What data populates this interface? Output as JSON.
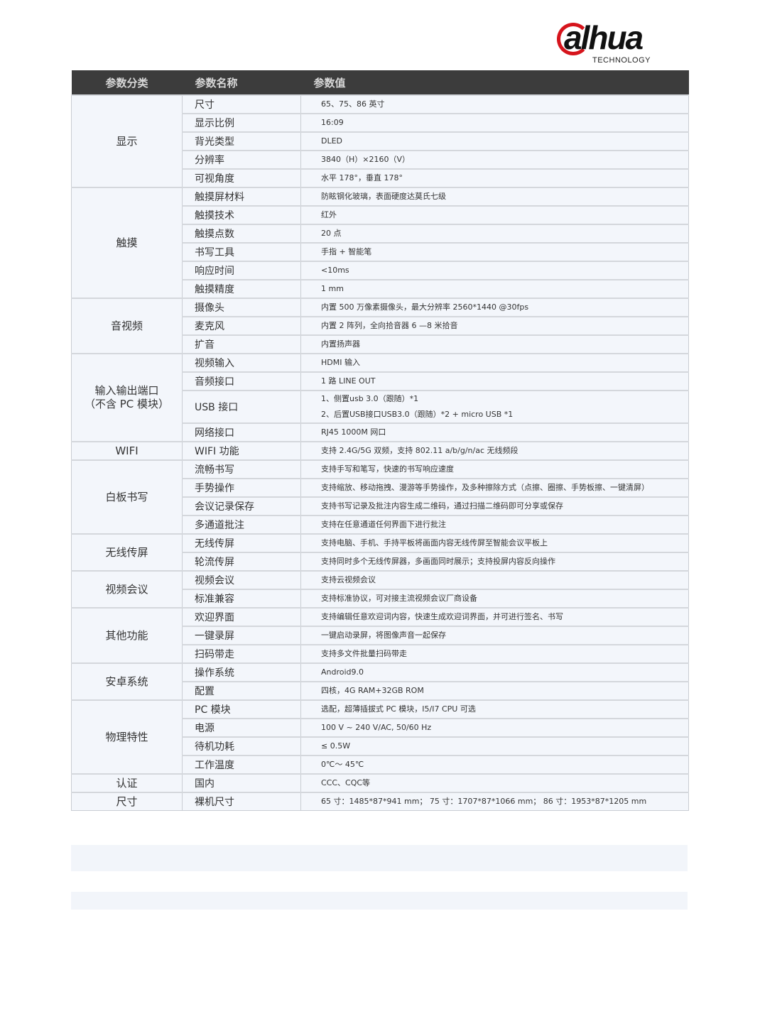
{
  "logo": {
    "text": "alhua",
    "subtitle": "TECHNOLOGY",
    "accent": "#d6141c"
  },
  "header": [
    "参数分类",
    "参数名称",
    "参数值"
  ],
  "groups": [
    {
      "category": [
        "显示"
      ],
      "rows": [
        [
          "尺寸",
          "65、75、86 英寸"
        ],
        [
          "显示比例",
          "16:09"
        ],
        [
          "背光类型",
          "DLED"
        ],
        [
          "分辨率",
          "3840（H）×2160（V）"
        ],
        [
          "可视角度",
          "水平 178°，垂直 178°"
        ]
      ]
    },
    {
      "category": [
        "触摸"
      ],
      "rows": [
        [
          "触摸屏材料",
          "防眩钢化玻璃，表面硬度达莫氏七级"
        ],
        [
          "触摸技术",
          "红外"
        ],
        [
          "触摸点数",
          "20 点"
        ],
        [
          "书写工具",
          "手指 + 智能笔"
        ],
        [
          "响应时间",
          "<10ms"
        ],
        [
          "触摸精度",
          "1 mm"
        ]
      ]
    },
    {
      "category": [
        "音视频"
      ],
      "rows": [
        [
          "摄像头",
          "内置 500 万像素摄像头，最大分辨率 2560*1440  @30fps"
        ],
        [
          "麦克风",
          "内置 2 阵列，全向拾音器 6 —8 米拾音"
        ],
        [
          "扩音",
          "内置扬声器"
        ]
      ]
    },
    {
      "category": [
        "输入输出端口",
        "（不含 PC 模块）"
      ],
      "rows": [
        [
          "视频输入",
          "HDMI 输入"
        ],
        [
          "音频接口",
          "1 路 LINE OUT"
        ],
        [
          "USB 接口",
          "1、侧置usb 3.0（跟随）*1",
          "2、后置USB接口USB3.0（跟随）*2 + micro USB *1"
        ],
        [
          "网络接口",
          "RJ45 1000M 网口"
        ]
      ]
    },
    {
      "category": [
        "WIFI"
      ],
      "rows": [
        [
          "WIFI 功能",
          "支持 2.4G/5G 双频，支持 802.11 a/b/g/n/ac 无线频段"
        ]
      ]
    },
    {
      "category": [
        "白板书写"
      ],
      "rows": [
        [
          "流畅书写",
          "支持手写和笔写，快速的书写响应速度"
        ],
        [
          "手势操作",
          "支持缩放、移动拖拽、漫游等手势操作，及多种擦除方式（点擦、圈擦、手势板擦、一键清屏）"
        ],
        [
          "会议记录保存",
          "支持书写记录及批注内容生成二维码，通过扫描二维码即可分享或保存"
        ],
        [
          "多通道批注",
          "支持在任意通道任何界面下进行批注"
        ]
      ]
    },
    {
      "category": [
        "无线传屏"
      ],
      "rows": [
        [
          "无线传屏",
          "支持电脑、手机、手持平板将画面内容无线传屏至智能会议平板上"
        ],
        [
          "轮流传屏",
          "支持同时多个无线传屏器，多画面同时展示；支持投屏内容反向操作"
        ]
      ]
    },
    {
      "category": [
        "视频会议"
      ],
      "rows": [
        [
          "视频会议",
          "支持云视频会议"
        ],
        [
          "标准兼容",
          "支持标准协议，可对接主流视频会议厂商设备"
        ]
      ]
    },
    {
      "category": [
        "其他功能"
      ],
      "rows": [
        [
          "欢迎界面",
          "支持编辑任意欢迎词内容，快速生成欢迎词界面，并可进行签名、书写"
        ],
        [
          "一键录屏",
          "一键启动录屏，将图像声音一起保存"
        ],
        [
          "扫码带走",
          "支持多文件批量扫码带走"
        ]
      ]
    },
    {
      "category": [
        "安卓系统"
      ],
      "rows": [
        [
          "操作系统",
          "Android9.0"
        ],
        [
          "配置",
          "四核，4G RAM+32GB ROM"
        ]
      ]
    },
    {
      "category": [
        "物理特性"
      ],
      "rows": [
        [
          "PC 模块",
          "选配，超薄插拔式 PC 模块，I5/I7 CPU 可选"
        ],
        [
          "电源",
          "100 V ~ 240 V/AC, 50/60 Hz"
        ],
        [
          "待机功耗",
          "≤ 0.5W"
        ],
        [
          "工作温度",
          "0℃～ 45℃"
        ]
      ]
    },
    {
      "category": [
        "认证"
      ],
      "rows": [
        [
          "国内",
          "CCC、CQC等"
        ]
      ]
    },
    {
      "category": [
        "尺寸"
      ],
      "rows": [
        [
          "裸机尺寸",
          "65 寸：1485*87*941 mm； 75 寸：1707*87*1066 mm； 86 寸：1953*87*1205 mm"
        ]
      ]
    }
  ]
}
